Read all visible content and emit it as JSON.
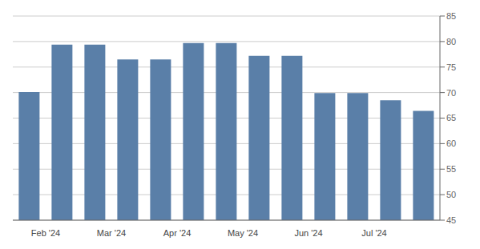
{
  "chart_data": {
    "type": "bar",
    "categories": [
      "Feb '24",
      null,
      "Mar '24",
      null,
      "Apr '24",
      null,
      "May '24",
      null,
      "Jun '24",
      null,
      "Jul '24",
      null,
      null
    ],
    "values": [
      70.1,
      79.4,
      79.4,
      76.5,
      76.5,
      79.7,
      79.7,
      77.2,
      77.2,
      69.9,
      69.9,
      68.5,
      66.4
    ],
    "color": "#5a7fa8",
    "ylim": [
      45,
      85
    ],
    "yticks": [
      45,
      50,
      55,
      60,
      65,
      70,
      75,
      80,
      85
    ],
    "grid": true
  }
}
